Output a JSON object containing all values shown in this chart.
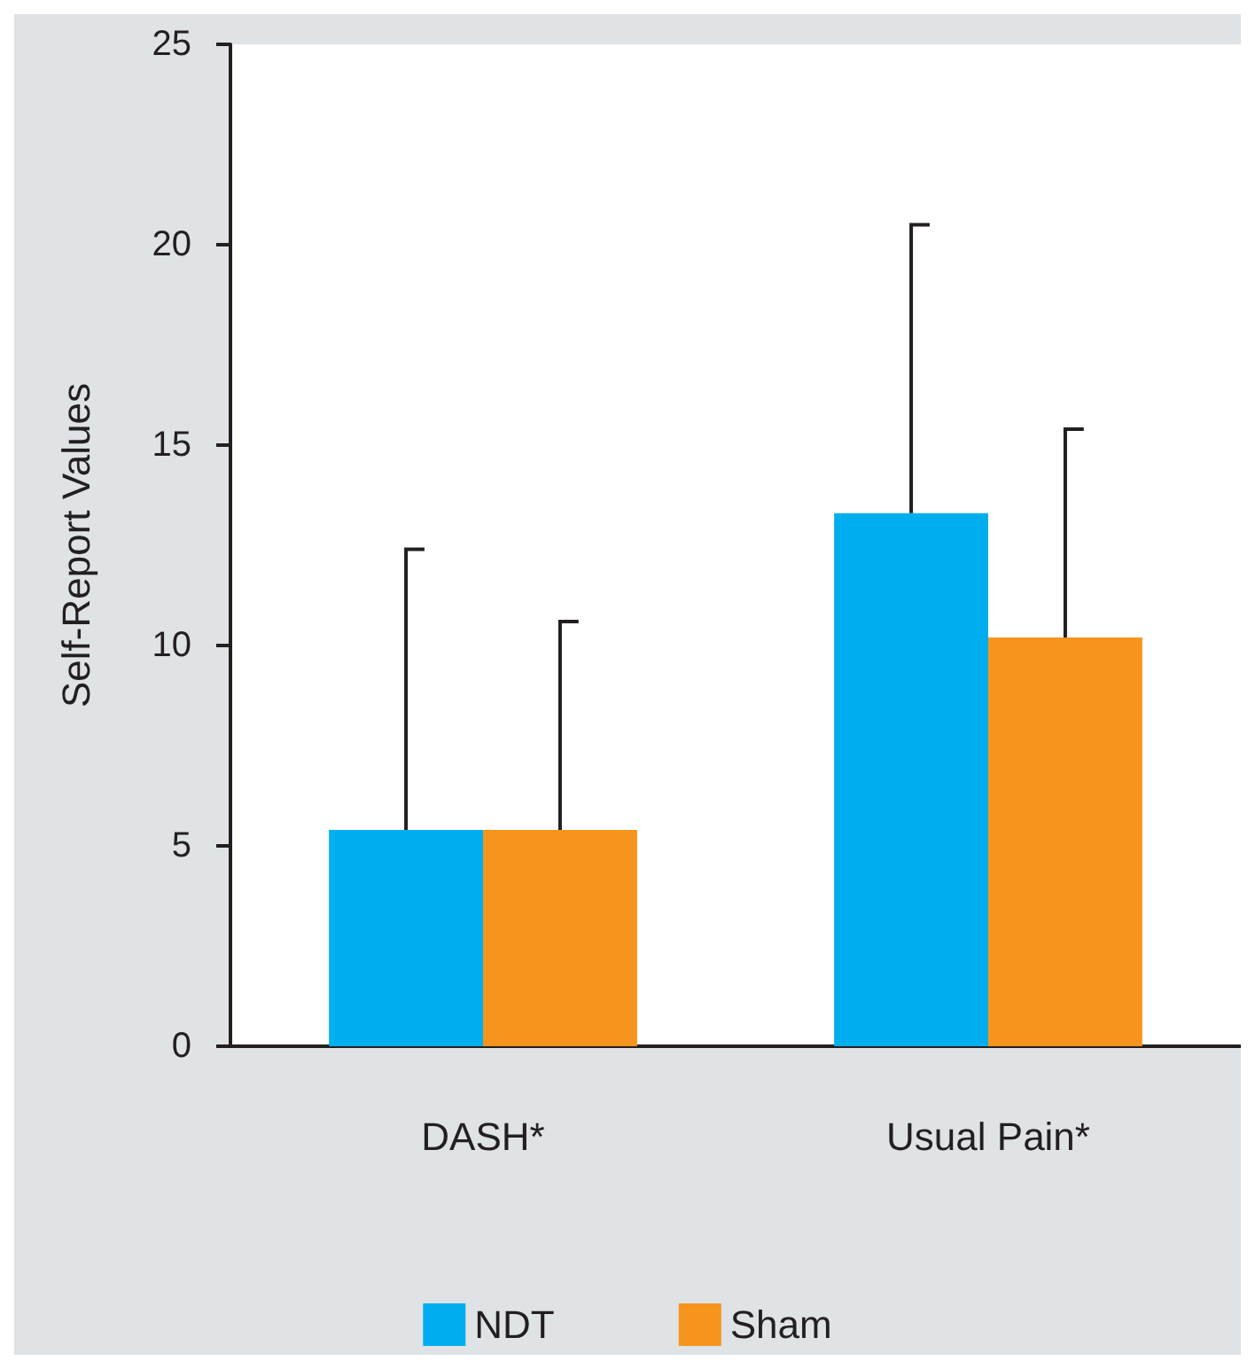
{
  "chart_data": {
    "type": "bar",
    "ylabel": "Self-Report Values",
    "categories": [
      "DASH*",
      "Usual Pain*"
    ],
    "series": [
      {
        "name": "NDT",
        "color": "#00aeef",
        "values": [
          5.4,
          13.3
        ],
        "errors": [
          [
            5.4,
            12.4
          ],
          [
            13.3,
            20.5
          ]
        ]
      },
      {
        "name": "Sham",
        "color": "#f7941d",
        "values": [
          5.4,
          10.2
        ],
        "errors": [
          [
            5.4,
            10.6
          ],
          [
            10.2,
            15.4
          ]
        ]
      }
    ],
    "ylim": [
      0,
      25
    ],
    "yticks": [
      0,
      5,
      10,
      15,
      20,
      25
    ],
    "grid": false,
    "legend": "bottom"
  }
}
